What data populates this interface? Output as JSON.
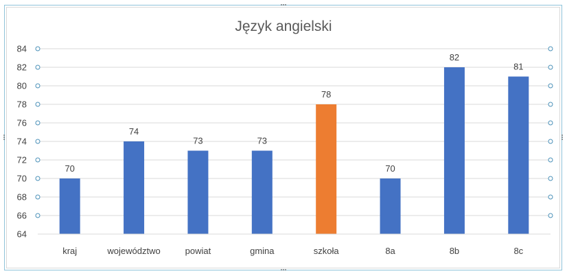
{
  "chart_data": {
    "type": "bar",
    "title": "Język angielski",
    "xlabel": "",
    "ylabel": "",
    "categories": [
      "kraj",
      "województwo",
      "powiat",
      "gmina",
      "szkoła",
      "8a",
      "8b",
      "8c"
    ],
    "values": [
      70,
      74,
      73,
      73,
      78,
      70,
      82,
      81
    ],
    "highlight_index": 4,
    "ylim": [
      64,
      84
    ],
    "yticks": [
      64,
      66,
      68,
      70,
      72,
      74,
      76,
      78,
      80,
      82,
      84
    ],
    "grid": true,
    "legend": "none",
    "colors": {
      "bar": "#4472C4",
      "highlight": "#ED7D31",
      "grid": "#D9D9D9",
      "text": "#404040",
      "title": "#595959",
      "selection": "#4A90B8"
    }
  }
}
